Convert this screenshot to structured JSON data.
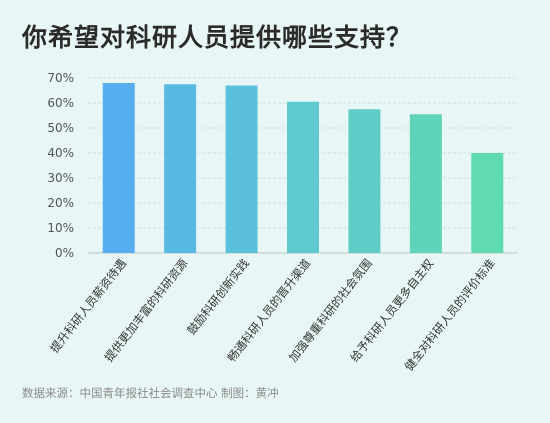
{
  "chart_data": {
    "type": "bar",
    "title": "你希望对科研人员提供哪些支持？",
    "categories": [
      "提升科研人员薪资待遇",
      "提供更加丰富的科研资源",
      "鼓励科研创新实践",
      "畅通科研人员的晋升渠道",
      "加强尊重科研的社会氛围",
      "给予科研人员更多自主权",
      "健全对科研人员的评价标准"
    ],
    "values": [
      68,
      67.5,
      67,
      60.5,
      57.5,
      55.5,
      40
    ],
    "yticks": [
      "0%",
      "10%",
      "20%",
      "30%",
      "40%",
      "50%",
      "60%",
      "70%"
    ],
    "ylim": [
      0,
      70
    ],
    "ylabel": "",
    "xlabel": "",
    "grid": true,
    "colors": [
      "#55aef0",
      "#58b8e4",
      "#5bc0db",
      "#5ecad0",
      "#60ccc8",
      "#5fd4b9",
      "#60dbb0"
    ]
  },
  "source": "数据来源：中国青年报社社会调查中心 制图：黄冲"
}
